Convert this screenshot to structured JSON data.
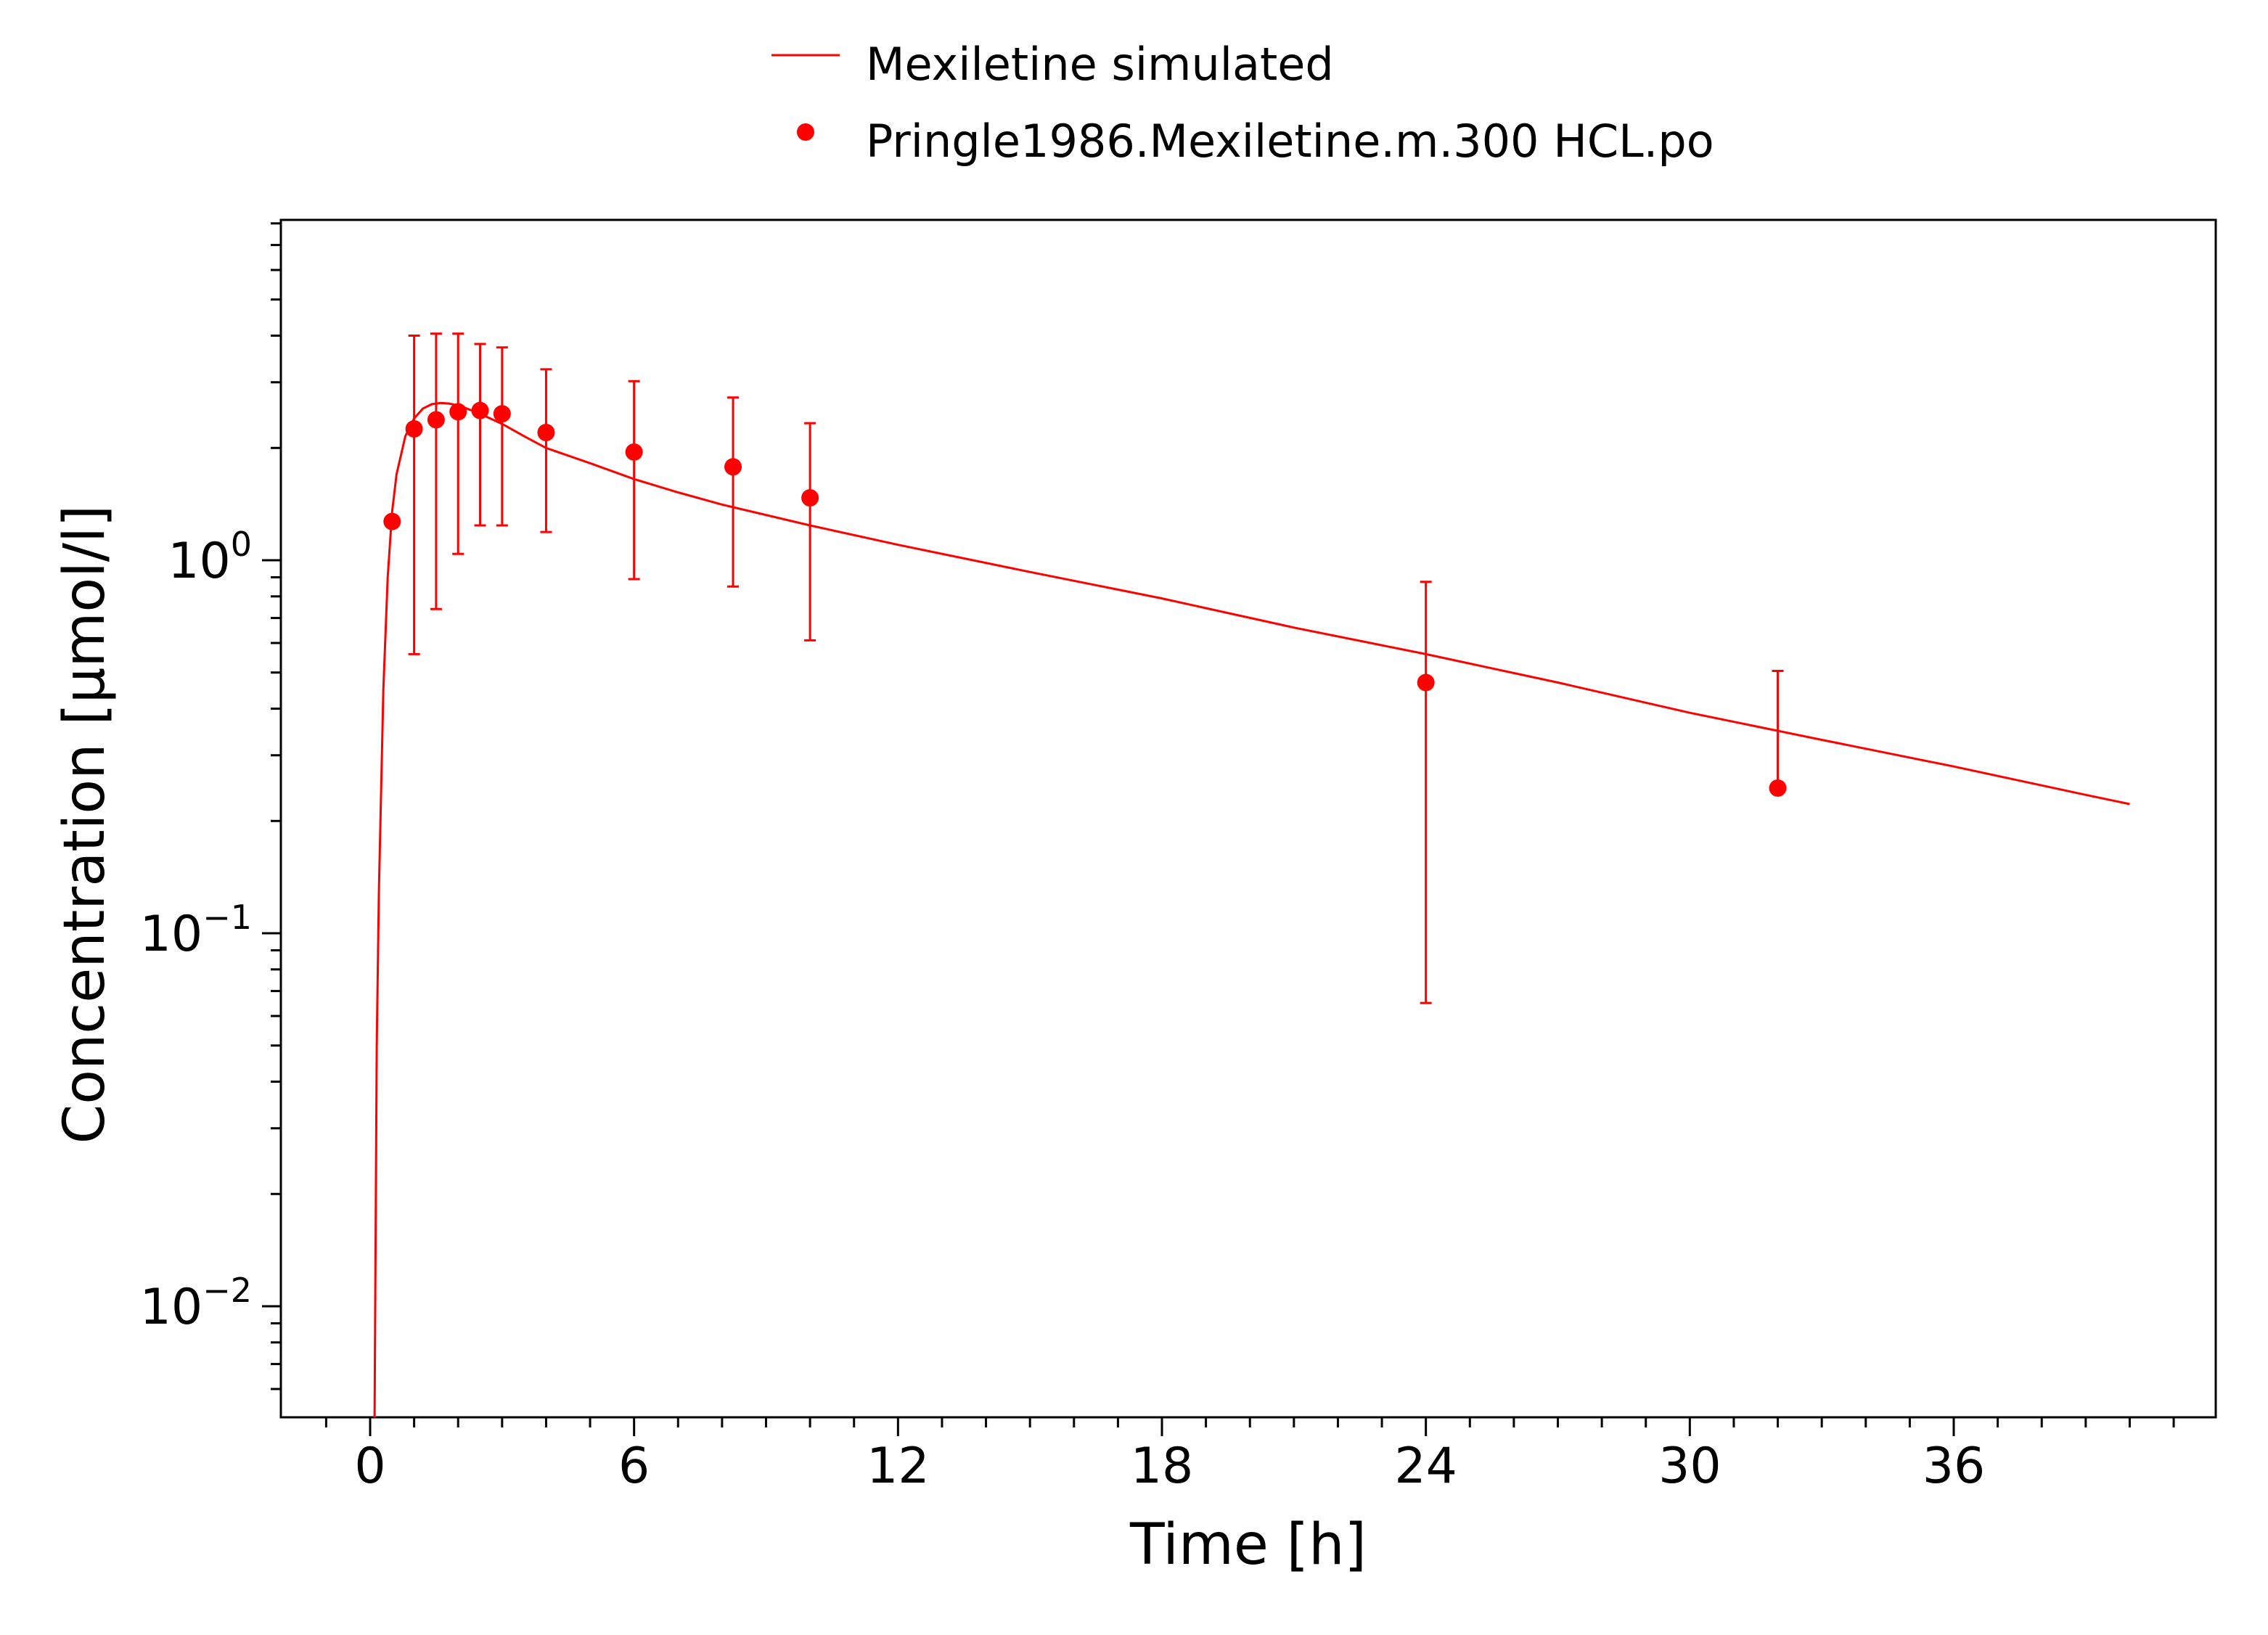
{
  "chart_data": {
    "type": "line",
    "xlabel": "Time [h]",
    "ylabel": "Concentration [µmol/l]",
    "yscale": "log",
    "xlim": [
      -2,
      42
    ],
    "ylim": [
      0.005,
      8
    ],
    "x_ticks": [
      0,
      6,
      12,
      18,
      24,
      30,
      36
    ],
    "x_tick_labels": [
      "0",
      "6",
      "12",
      "18",
      "24",
      "30",
      "36"
    ],
    "y_ticks": [
      {
        "value": 0.01,
        "base": "10",
        "exp": "−2"
      },
      {
        "value": 0.1,
        "base": "10",
        "exp": "−1"
      },
      {
        "value": 1,
        "base": "10",
        "exp": "0"
      }
    ],
    "grid": false,
    "legend_position": "top-center",
    "color": "#ff0000",
    "series": [
      {
        "name": "Mexiletine simulated",
        "kind": "line",
        "x": [
          0.1,
          0.15,
          0.2,
          0.3,
          0.4,
          0.5,
          0.6,
          0.8,
          1.0,
          1.2,
          1.4,
          1.6,
          1.8,
          2.0,
          2.2,
          2.5,
          3.0,
          3.5,
          4.0,
          5.0,
          6.0,
          7.0,
          8.0,
          10.0,
          12.0,
          15.0,
          18.0,
          21.0,
          24.0,
          27.0,
          30.0,
          33.0,
          36.0,
          39.0,
          40.0
        ],
        "y": [
          0.005,
          0.05,
          0.13,
          0.45,
          0.9,
          1.35,
          1.7,
          2.15,
          2.4,
          2.55,
          2.62,
          2.64,
          2.63,
          2.6,
          2.55,
          2.47,
          2.32,
          2.15,
          2.0,
          1.82,
          1.65,
          1.52,
          1.41,
          1.24,
          1.1,
          0.93,
          0.79,
          0.66,
          0.56,
          0.47,
          0.39,
          0.33,
          0.28,
          0.235,
          0.222
        ]
      },
      {
        "name": "Pringle1986.Mexiletine.m.300 HCL.po",
        "kind": "points_with_errorbars",
        "points": [
          {
            "x": 0.5,
            "y": 1.27
          },
          {
            "x": 1.0,
            "y": 2.25,
            "lo": 0.56,
            "hi": 4.0
          },
          {
            "x": 1.5,
            "y": 2.38,
            "lo": 0.74,
            "hi": 4.05
          },
          {
            "x": 2.0,
            "y": 2.5,
            "lo": 1.04,
            "hi": 4.05
          },
          {
            "x": 2.5,
            "y": 2.52,
            "lo": 1.24,
            "hi": 3.8
          },
          {
            "x": 3.0,
            "y": 2.47,
            "lo": 1.24,
            "hi": 3.72
          },
          {
            "x": 4.0,
            "y": 2.2,
            "lo": 1.19,
            "hi": 3.25
          },
          {
            "x": 6.0,
            "y": 1.95,
            "lo": 0.89,
            "hi": 3.02
          },
          {
            "x": 8.25,
            "y": 1.78,
            "lo": 0.85,
            "hi": 2.73
          },
          {
            "x": 10.0,
            "y": 1.47,
            "lo": 0.61,
            "hi": 2.33
          },
          {
            "x": 24.0,
            "y": 0.47,
            "lo": 0.065,
            "hi": 0.875
          },
          {
            "x": 32.0,
            "y": 0.245,
            "lo": null,
            "hi": 0.505
          }
        ]
      }
    ]
  }
}
